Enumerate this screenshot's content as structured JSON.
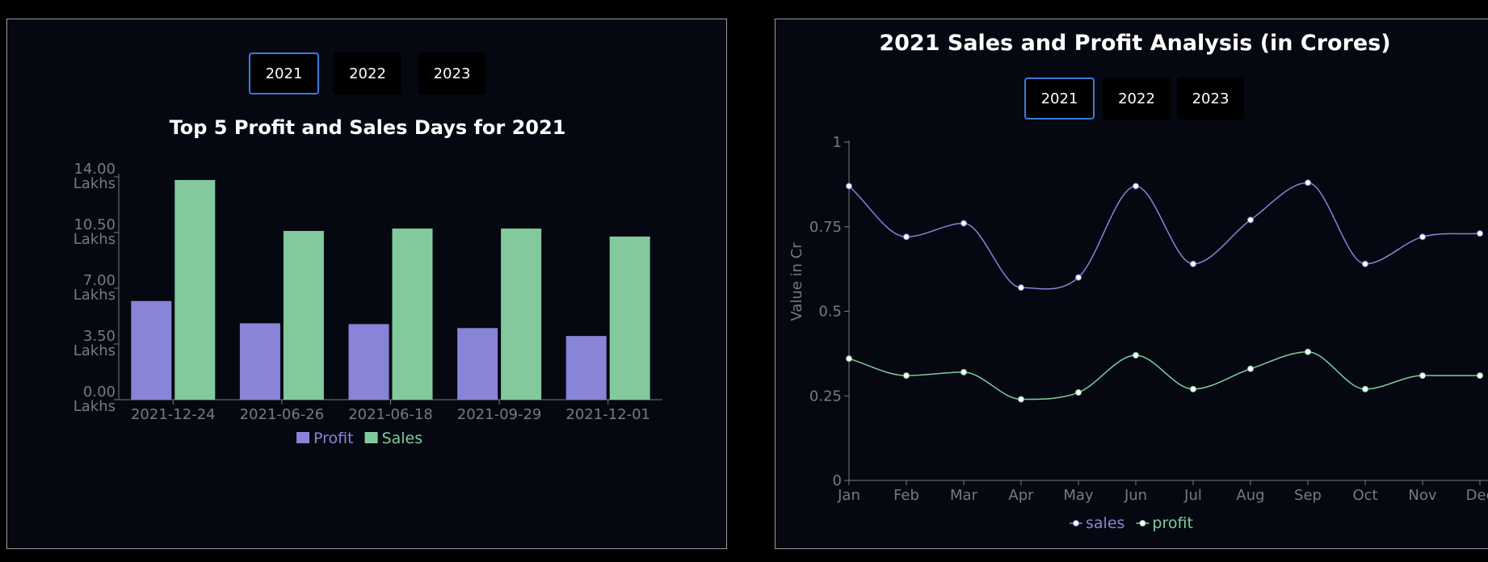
{
  "left_panel": {
    "year_buttons": [
      {
        "label": "2021",
        "active": true
      },
      {
        "label": "2022",
        "active": false
      },
      {
        "label": "2023",
        "active": false
      }
    ]
  },
  "right_panel": {
    "year_buttons": [
      {
        "label": "2021",
        "active": true
      },
      {
        "label": "2022",
        "active": false
      },
      {
        "label": "2023",
        "active": false
      }
    ]
  },
  "chart_data": [
    {
      "type": "bar",
      "title": "Top 5 Profit and Sales Days for 2021",
      "categories": [
        "2021-12-24",
        "2021-06-26",
        "2021-06-18",
        "2021-09-29",
        "2021-12-01"
      ],
      "series": [
        {
          "name": "Profit",
          "color": "#8884d8",
          "values": [
            6.2,
            4.8,
            4.75,
            4.5,
            4.0
          ]
        },
        {
          "name": "Sales",
          "color": "#82ca9d",
          "values": [
            13.8,
            10.6,
            10.75,
            10.75,
            10.25
          ]
        }
      ],
      "yticks": [
        {
          "value": 0,
          "line1": "0.00",
          "line2": "Lakhs"
        },
        {
          "value": 3.5,
          "line1": "3.50",
          "line2": "Lakhs"
        },
        {
          "value": 7,
          "line1": "7.00",
          "line2": "Lakhs"
        },
        {
          "value": 10.5,
          "line1": "10.50",
          "line2": "Lakhs"
        },
        {
          "value": 14,
          "line1": "14.00",
          "line2": "Lakhs"
        }
      ],
      "ylim": [
        0,
        14
      ],
      "legend": "bottom-center",
      "grid": false
    },
    {
      "type": "line",
      "title": "2021 Sales and Profit Analysis (in Crores)",
      "ylabel": "Value in Cr",
      "x": [
        "Jan",
        "Feb",
        "Mar",
        "Apr",
        "May",
        "Jun",
        "Jul",
        "Aug",
        "Sep",
        "Oct",
        "Nov",
        "Dec"
      ],
      "series": [
        {
          "name": "sales",
          "color": "#8884d8",
          "values": [
            0.87,
            0.72,
            0.76,
            0.57,
            0.6,
            0.87,
            0.64,
            0.77,
            0.88,
            0.64,
            0.72,
            0.73
          ]
        },
        {
          "name": "profit",
          "color": "#82ca9d",
          "values": [
            0.36,
            0.31,
            0.32,
            0.24,
            0.26,
            0.37,
            0.27,
            0.33,
            0.38,
            0.27,
            0.31,
            0.31
          ]
        }
      ],
      "yticks": [
        "0",
        "0.25",
        "0.5",
        "0.75",
        "1"
      ],
      "ylim": [
        0,
        1
      ],
      "legend": "bottom-center",
      "grid": false
    }
  ]
}
